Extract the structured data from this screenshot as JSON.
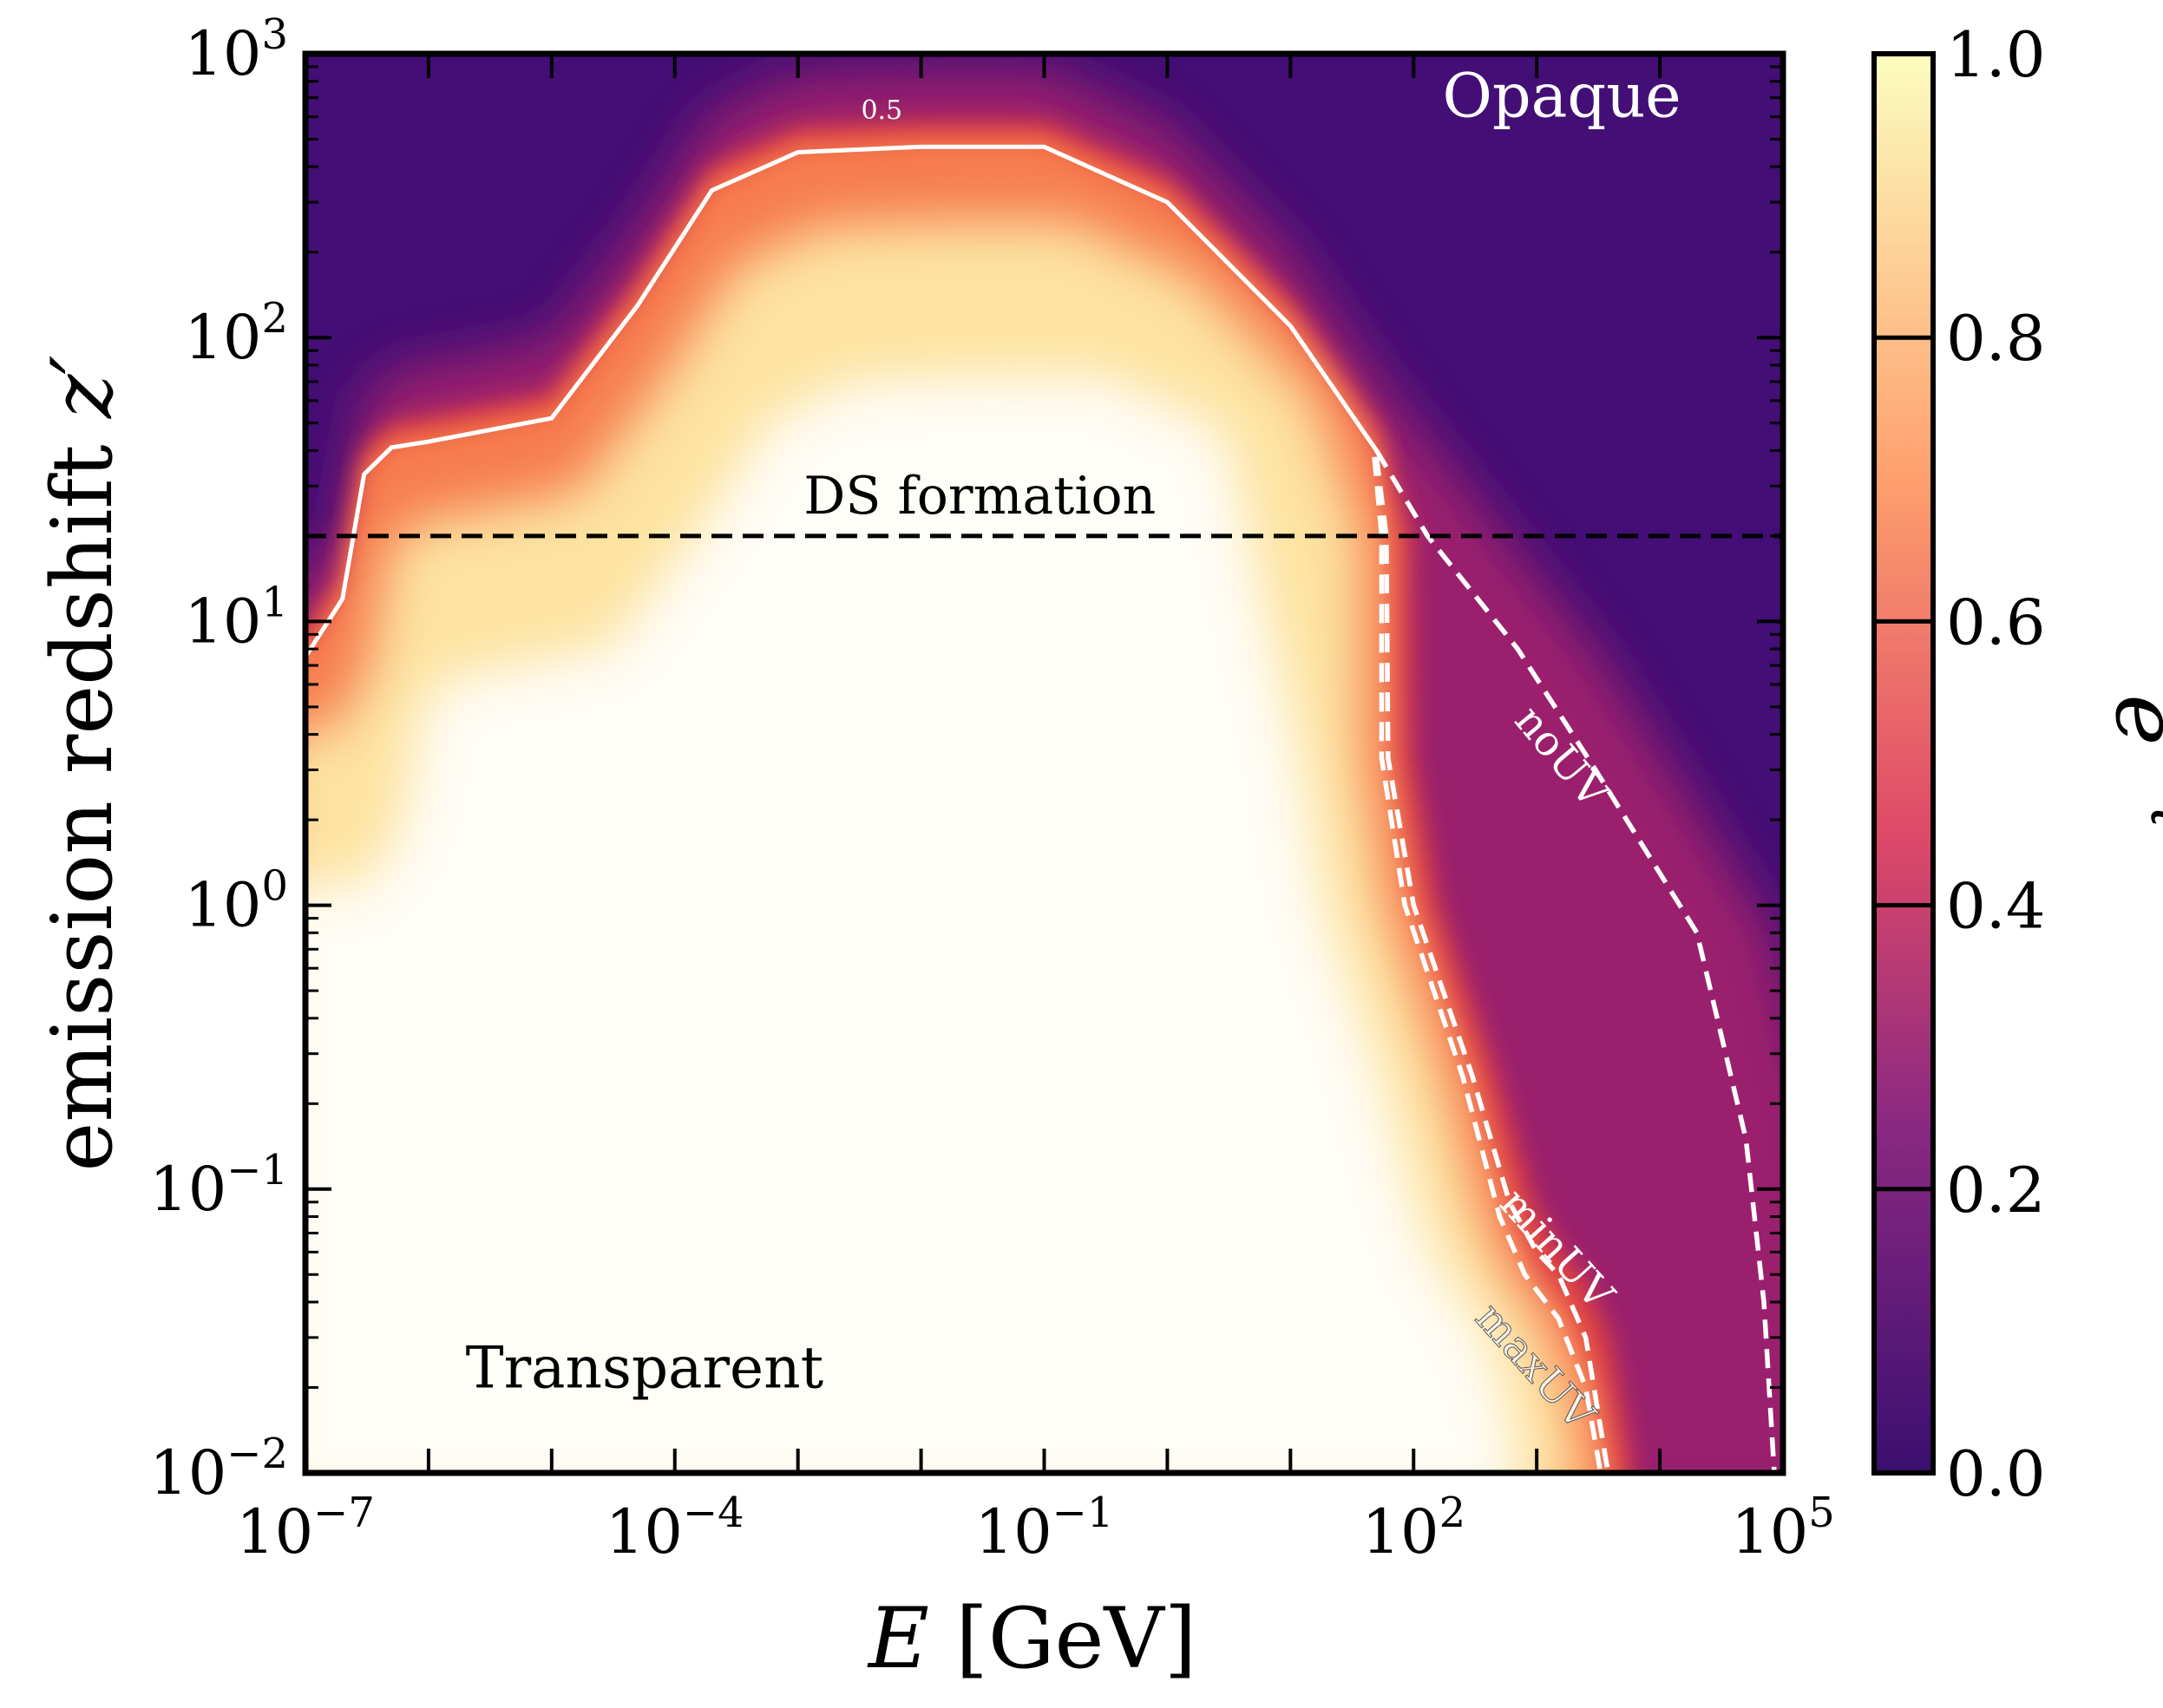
{
  "chart_data": {
    "type": "heatmap",
    "title": "",
    "xlabel": "E [GeV]",
    "xlabel_italic": "E",
    "xlabel_rest": " [GeV]",
    "ylabel": "emission redshift z′",
    "ylabel_text": "emission redshift ",
    "ylabel_symbol": "z′",
    "x_scale": "log",
    "y_scale": "log",
    "xlim": [
      1e-07,
      100000.0
    ],
    "ylim": [
      0.01,
      1000
    ],
    "x_ticks": [
      {
        "value": 1e-07,
        "base": "10",
        "exp": "−7"
      },
      {
        "value": 0.0001,
        "base": "10",
        "exp": "−4"
      },
      {
        "value": 0.1,
        "base": "10",
        "exp": "−1"
      },
      {
        "value": 100,
        "base": "10",
        "exp": "2"
      },
      {
        "value": 100000.0,
        "base": "10",
        "exp": "5"
      }
    ],
    "y_ticks": [
      {
        "value": 0.01,
        "base": "10",
        "exp": "−2"
      },
      {
        "value": 0.1,
        "base": "10",
        "exp": "−1"
      },
      {
        "value": 1,
        "base": "10",
        "exp": "0"
      },
      {
        "value": 10,
        "base": "10",
        "exp": "1"
      },
      {
        "value": 100,
        "base": "10",
        "exp": "2"
      },
      {
        "value": 1000,
        "base": "10",
        "exp": "3"
      }
    ],
    "colorbar": {
      "label": "e⁻τ",
      "label_base": "e",
      "label_exp": "−τ",
      "range": [
        0,
        1
      ],
      "ticks": [
        "0.0",
        "0.2",
        "0.4",
        "0.6",
        "0.8",
        "1.0"
      ],
      "colormap": "magma",
      "stops": [
        "#3b0f70",
        "#8c2981",
        "#de4968",
        "#fe9f6d",
        "#fcfdbf"
      ]
    },
    "contour_0p5": {
      "label": "0.5",
      "label_at": [
        0.0048,
        590
      ],
      "points": [
        [
          1e-07,
          7.5
        ],
        [
          2e-07,
          12
        ],
        [
          3e-07,
          33
        ],
        [
          5e-07,
          41
        ],
        [
          1e-06,
          43
        ],
        [
          1e-05,
          52
        ],
        [
          5e-05,
          130
        ],
        [
          0.0002,
          330
        ],
        [
          0.001,
          450
        ],
        [
          0.01,
          470
        ],
        [
          0.1,
          470
        ],
        [
          1,
          300
        ],
        [
          10,
          110
        ],
        [
          50,
          40
        ]
      ]
    },
    "ds_formation": {
      "label": "DS formation",
      "z": 20,
      "label_at": [
        0.03,
        24
      ]
    },
    "curves": [
      {
        "name": "noUV",
        "label_at": [
          1300,
          3.1
        ],
        "rotation_deg": 50,
        "points": [
          [
            50,
            40
          ],
          [
            130,
            20
          ],
          [
            700,
            8
          ],
          [
            3000,
            3
          ],
          [
            20000.0,
            0.8
          ],
          [
            50000.0,
            0.15
          ],
          [
            70000.0,
            0.04
          ],
          [
            85000.0,
            0.01
          ]
        ]
      },
      {
        "name": "minUV",
        "label_at": [
          1200,
          0.057
        ],
        "rotation_deg": 48,
        "points": [
          [
            50,
            38
          ],
          [
            60,
            20
          ],
          [
            62,
            3.3
          ],
          [
            100,
            1
          ],
          [
            300,
            0.25
          ],
          [
            600,
            0.09
          ],
          [
            1000,
            0.06
          ],
          [
            1500,
            0.05
          ],
          [
            2500,
            0.03
          ],
          [
            3800,
            0.01
          ]
        ]
      },
      {
        "name": "maxUV",
        "label_at": [
          800,
          0.022
        ],
        "rotation_deg": 48,
        "points": [
          [
            48,
            38
          ],
          [
            55,
            20
          ],
          [
            55,
            3.3
          ],
          [
            85,
            1
          ],
          [
            250,
            0.25
          ],
          [
            500,
            0.08
          ],
          [
            800,
            0.05
          ],
          [
            1500,
            0.035
          ],
          [
            2500,
            0.02
          ],
          [
            3300,
            0.01
          ]
        ]
      }
    ],
    "annotations": [
      {
        "text": "Opaque",
        "at": [
          1600,
          600
        ]
      },
      {
        "text": "Transparent",
        "at": [
          2e-06,
          0.02
        ]
      }
    ],
    "colors": {
      "opaque": "#430e75",
      "frame": "#000000",
      "contour": "#ffffff"
    }
  }
}
